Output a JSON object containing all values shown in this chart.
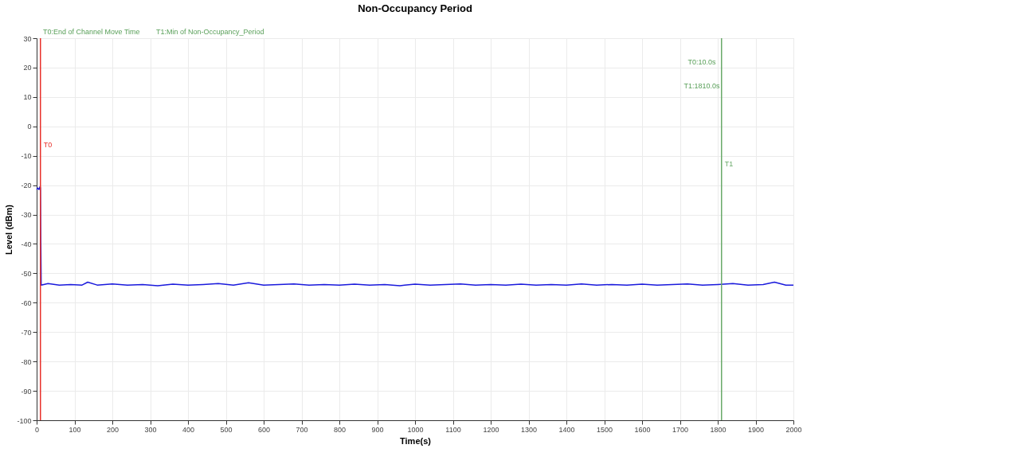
{
  "chart_data": {
    "type": "line",
    "title": "Non-Occupancy Period",
    "xlabel": "Time(s)",
    "ylabel": "Level (dBm)",
    "x": [
      0,
      3,
      6,
      9,
      10,
      12,
      30,
      60,
      90,
      120,
      135,
      160,
      200,
      240,
      280,
      320,
      360,
      400,
      440,
      480,
      520,
      560,
      600,
      640,
      680,
      720,
      760,
      800,
      840,
      880,
      920,
      960,
      1000,
      1040,
      1080,
      1120,
      1160,
      1200,
      1240,
      1280,
      1320,
      1360,
      1400,
      1440,
      1480,
      1520,
      1560,
      1600,
      1640,
      1680,
      1720,
      1760,
      1800,
      1840,
      1880,
      1920,
      1950,
      1980,
      2000
    ],
    "series": [
      {
        "color": "#1a1adc",
        "values": [
          -21.5,
          -21,
          -21.5,
          -20.5,
          -21,
          -54,
          -53.5,
          -54,
          -53.8,
          -54,
          -53,
          -54,
          -53.6,
          -54,
          -53.8,
          -54.2,
          -53.7,
          -54,
          -53.8,
          -53.5,
          -54,
          -53.2,
          -54,
          -53.8,
          -53.6,
          -54,
          -53.8,
          -54,
          -53.7,
          -54,
          -53.8,
          -54.2,
          -53.7,
          -54,
          -53.8,
          -53.6,
          -54,
          -53.8,
          -54,
          -53.7,
          -54,
          -53.8,
          -54,
          -53.6,
          -54,
          -53.8,
          -54,
          -53.7,
          -54,
          -53.8,
          -53.6,
          -54,
          -53.8,
          -53.5,
          -54,
          -53.8,
          -53,
          -54,
          -54
        ]
      }
    ],
    "xlim": [
      0,
      2000
    ],
    "ylim": [
      -100,
      30
    ],
    "xticks": [
      0,
      100,
      200,
      300,
      400,
      500,
      600,
      700,
      800,
      900,
      1000,
      1100,
      1200,
      1300,
      1400,
      1500,
      1600,
      1700,
      1800,
      1900,
      2000
    ],
    "yticks": [
      -100,
      -90,
      -80,
      -70,
      -60,
      -50,
      -40,
      -30,
      -20,
      -10,
      0,
      10,
      20,
      30
    ],
    "grid": true,
    "marker": "none",
    "line_style": "solid",
    "ref_lines": [
      {
        "axis": "x",
        "value": 10,
        "label": "T0",
        "color": "#e8302a"
      },
      {
        "axis": "x",
        "value": 1810,
        "label": "T1",
        "color": "#6aaa6a"
      }
    ],
    "annotations": [
      "T0:End of Channel Move Time",
      "T1:Min of Non-Occupancy_Period",
      "T0:10.0s",
      "T1:1810.0s"
    ]
  }
}
